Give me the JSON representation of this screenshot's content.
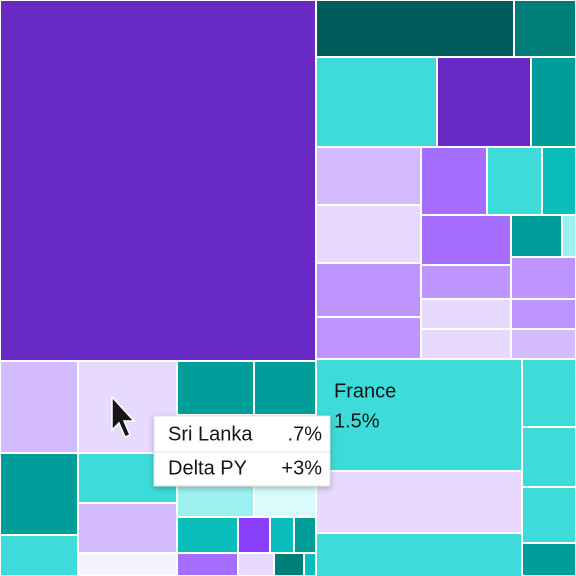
{
  "treemap": {
    "label": {
      "name": "France",
      "share": "1.5%"
    }
  },
  "tooltip": {
    "rows": [
      [
        "Sri Lanka",
        ".7%"
      ],
      [
        "Delta PY",
        "+3%"
      ]
    ]
  }
}
